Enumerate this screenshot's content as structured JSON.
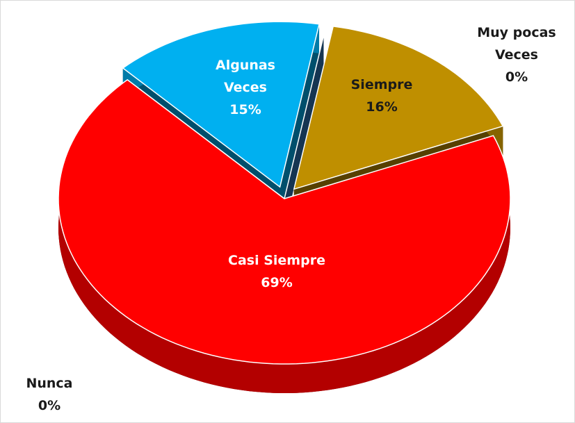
{
  "chart_data": {
    "type": "pie",
    "categories": [
      "Siempre",
      "Casi Siempre",
      "Nunca",
      "Algunas Veces",
      "Muy pocas Veces"
    ],
    "values": [
      16,
      69,
      0,
      15,
      0
    ],
    "value_labels": [
      "16%",
      "69%",
      "0%",
      "15%",
      "0%"
    ],
    "colors": [
      "#bf8f00",
      "#ff0000",
      "#a5a5a5",
      "#00b0f0",
      "#2e75b6"
    ]
  }
}
